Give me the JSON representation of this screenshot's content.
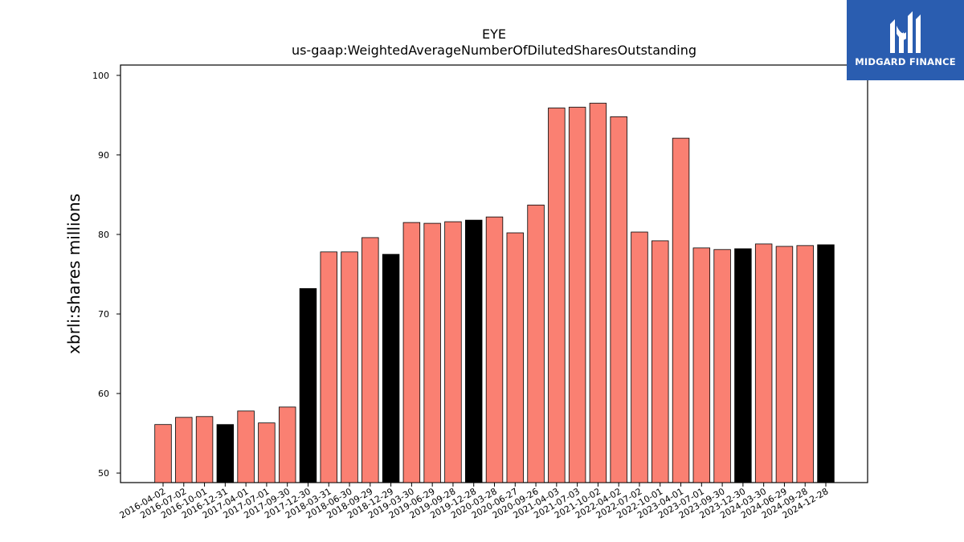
{
  "logo": {
    "brand": "MIDGARD FINANCE",
    "icon": "midgard-logo-icon",
    "background_color": "#2a5db0"
  },
  "colors": {
    "bar_default": "#fa8072",
    "bar_highlight": "#000000",
    "bar_edge": "#000000"
  },
  "chart_data": {
    "type": "bar",
    "title": "EYE",
    "subtitle": "us-gaap:WeightedAverageNumberOfDilutedSharesOutstanding",
    "xlabel": "",
    "ylabel": "xbrli:shares millions",
    "ylim": [
      48.8,
      101.3
    ],
    "yticks": [
      50,
      60,
      70,
      80,
      90,
      100
    ],
    "grid": false,
    "categories": [
      "2016-04-02",
      "2016-07-02",
      "2016-10-01",
      "2016-12-31",
      "2017-04-01",
      "2017-07-01",
      "2017-09-30",
      "2017-12-30",
      "2018-03-31",
      "2018-06-30",
      "2018-09-29",
      "2018-12-29",
      "2019-03-30",
      "2019-06-29",
      "2019-09-28",
      "2019-12-28",
      "2020-03-28",
      "2020-06-27",
      "2020-09-26",
      "2021-04-03",
      "2021-07-03",
      "2021-10-02",
      "2022-04-02",
      "2022-07-02",
      "2022-10-01",
      "2023-04-01",
      "2023-07-01",
      "2023-09-30",
      "2023-12-30",
      "2024-03-30",
      "2024-06-29",
      "2024-09-28",
      "2024-12-28"
    ],
    "values": [
      56.1,
      57.0,
      57.1,
      56.1,
      57.8,
      56.3,
      58.3,
      73.2,
      77.8,
      77.8,
      79.6,
      77.5,
      81.5,
      81.4,
      81.6,
      81.8,
      82.2,
      80.2,
      83.7,
      95.9,
      96.0,
      96.5,
      94.8,
      80.3,
      79.2,
      92.1,
      78.3,
      78.1,
      78.2,
      78.8,
      78.5,
      78.6,
      78.7
    ],
    "highlight": [
      false,
      false,
      false,
      true,
      false,
      false,
      false,
      true,
      false,
      false,
      false,
      true,
      false,
      false,
      false,
      true,
      false,
      false,
      false,
      false,
      false,
      false,
      false,
      false,
      false,
      false,
      false,
      false,
      true,
      false,
      false,
      false,
      true
    ]
  }
}
